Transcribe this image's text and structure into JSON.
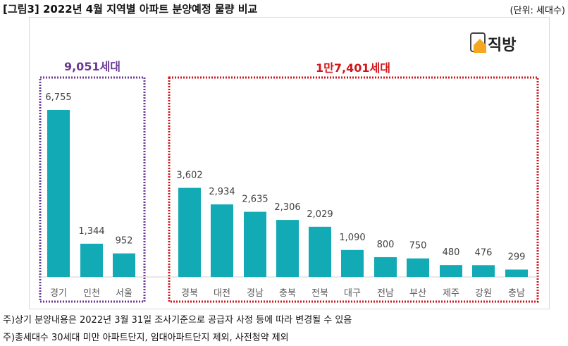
{
  "header": {
    "title": "[그림3] 2022년 4월 지역별 아파트 분양예정 물량 비교",
    "unit": "(단위: 세대수)"
  },
  "logo": {
    "text": "직방",
    "icon": "house-icon",
    "color": "#f5a623"
  },
  "chart_data": {
    "type": "bar",
    "categories": [
      "경기",
      "인천",
      "서울",
      "경북",
      "대전",
      "경남",
      "충북",
      "전북",
      "대구",
      "전남",
      "부산",
      "제주",
      "강원",
      "충남"
    ],
    "values": [
      6755,
      1344,
      952,
      3602,
      2934,
      2635,
      2306,
      2029,
      1090,
      800,
      750,
      480,
      476,
      299
    ],
    "value_labels": [
      "6,755",
      "1,344",
      "952",
      "3,602",
      "2,934",
      "2,635",
      "2,306",
      "2,029",
      "1,090",
      "800",
      "750",
      "480",
      "476",
      "299"
    ],
    "bar_color": "#12aab5",
    "groups": [
      {
        "label": "9,051세대",
        "color": "#6b3a96",
        "count": 3
      },
      {
        "label": "1만7,401세대",
        "color": "#d0161c",
        "count": 11
      }
    ],
    "ylim": [
      0,
      6755
    ],
    "grid": false
  },
  "notes": [
    "주)상기 분양내용은 2022년 3월 31일 조사기준으로 공급자 사정 등에 따라 변경될 수 있음",
    "주)총세대수 30세대 미만 아파트단지, 임대아파트단지 제외, 사전청약 제외"
  ]
}
